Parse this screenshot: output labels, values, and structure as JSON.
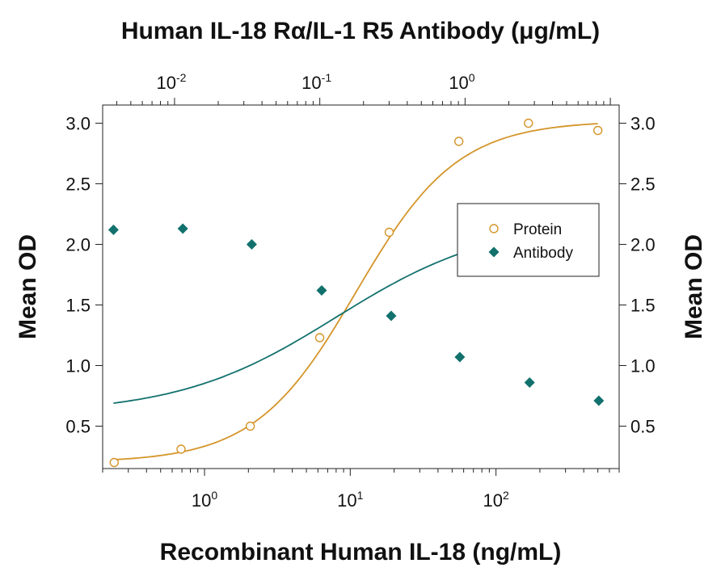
{
  "chart_data": {
    "type": "scatter",
    "title": "Human IL-18 Rα/IL-1 R5 Antibody (μg/mL)",
    "xlabel": "Recombinant Human IL-18 (ng/mL)",
    "ylabel_left": "Mean OD",
    "ylabel_right": "Mean OD",
    "x_scale": "log",
    "x_bottom_lim": [
      0.2,
      700
    ],
    "x_bottom_ticks": [
      {
        "value": 1,
        "base": "10",
        "exp": "0"
      },
      {
        "value": 10,
        "base": "10",
        "exp": "1"
      },
      {
        "value": 100,
        "base": "10",
        "exp": "2"
      }
    ],
    "x_top_lim": [
      0.0032,
      11.5
    ],
    "x_top_ticks": [
      {
        "value": 0.01,
        "base": "10",
        "exp": "-2"
      },
      {
        "value": 0.1,
        "base": "10",
        "exp": "-1"
      },
      {
        "value": 1,
        "base": "10",
        "exp": "0"
      }
    ],
    "ylim": [
      0.15,
      3.15
    ],
    "y_ticks": [
      "0.5",
      "1.0",
      "1.5",
      "2.0",
      "2.5",
      "3.0"
    ],
    "legend_position": "right-middle",
    "grid": false,
    "series": [
      {
        "name": "Protein",
        "axis": "bottom",
        "marker": "circle-open",
        "color": "#D4952A",
        "x": [
          0.24,
          0.69,
          2.06,
          6.17,
          18.5,
          55.6,
          167,
          500
        ],
        "y": [
          0.2,
          0.31,
          0.5,
          1.23,
          2.1,
          2.85,
          3.0,
          2.94
        ]
      },
      {
        "name": "Antibody",
        "axis": "top",
        "marker": "diamond-filled",
        "color": "#12716D",
        "x": [
          0.0038,
          0.0114,
          0.034,
          0.103,
          0.31,
          0.92,
          2.78,
          8.33
        ],
        "y": [
          2.12,
          2.13,
          2.0,
          1.62,
          1.41,
          1.07,
          0.86,
          0.71
        ]
      }
    ],
    "fit_curves": [
      {
        "series": "Protein",
        "bottom": 0.2,
        "top": 3.02,
        "ec50": 11,
        "hill": 1.25
      },
      {
        "series": "Antibody",
        "bottom": 0.6,
        "top": 2.2,
        "ec50": 0.13,
        "hill": 0.8
      }
    ]
  }
}
